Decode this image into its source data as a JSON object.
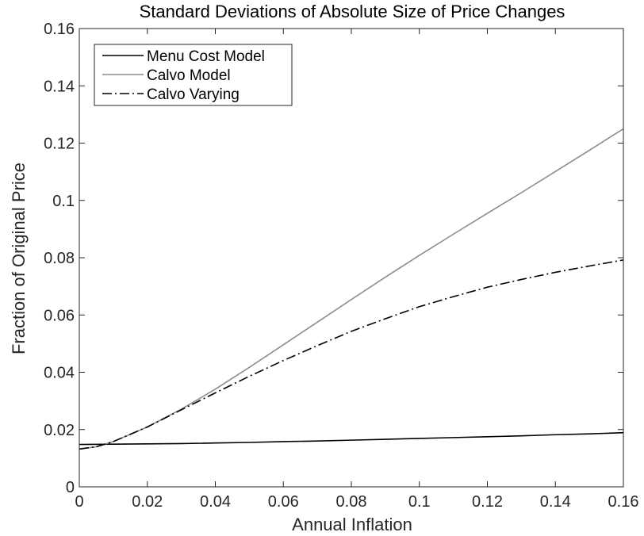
{
  "chart_data": {
    "type": "line",
    "title": "Standard Deviations of Absolute Size of Price Changes",
    "xlabel": "Annual Inflation",
    "ylabel": "Fraction of Original Price",
    "xlim": [
      0,
      0.16
    ],
    "ylim": [
      0,
      0.16
    ],
    "xticks": [
      0,
      0.02,
      0.04,
      0.06,
      0.08,
      0.1,
      0.12,
      0.14,
      0.16
    ],
    "xtick_labels": [
      "0",
      "0.02",
      "0.04",
      "0.06",
      "0.08",
      "0.1",
      "0.12",
      "0.14",
      "0.16"
    ],
    "yticks": [
      0,
      0.02,
      0.04,
      0.06,
      0.08,
      0.1,
      0.12,
      0.14,
      0.16
    ],
    "ytick_labels": [
      "0",
      "0.02",
      "0.04",
      "0.06",
      "0.08",
      "0.1",
      "0.12",
      "0.14",
      "0.16"
    ],
    "grid": false,
    "legend_position": "top-left",
    "series": [
      {
        "name": "Menu Cost Model",
        "color": "#000000",
        "dash": "solid",
        "x": [
          0,
          0.01,
          0.02,
          0.03,
          0.04,
          0.05,
          0.06,
          0.07,
          0.08,
          0.09,
          0.1,
          0.11,
          0.12,
          0.13,
          0.14,
          0.15,
          0.16
        ],
        "y": [
          0.0148,
          0.0149,
          0.015,
          0.0151,
          0.0153,
          0.0155,
          0.0158,
          0.016,
          0.0163,
          0.0166,
          0.0169,
          0.0172,
          0.0175,
          0.0178,
          0.0182,
          0.0185,
          0.0189
        ]
      },
      {
        "name": "Calvo Model",
        "color": "#8c8c8c",
        "dash": "solid",
        "x": [
          0,
          0.005,
          0.01,
          0.02,
          0.03,
          0.04,
          0.05,
          0.06,
          0.07,
          0.08,
          0.09,
          0.1,
          0.11,
          0.12,
          0.13,
          0.14,
          0.15,
          0.16
        ],
        "y": [
          0.0132,
          0.014,
          0.0158,
          0.0209,
          0.0271,
          0.0341,
          0.0417,
          0.0496,
          0.0575,
          0.0654,
          0.0732,
          0.0808,
          0.0882,
          0.0955,
          0.1027,
          0.1101,
          0.1175,
          0.125
        ]
      },
      {
        "name": "Calvo Varying",
        "color": "#000000",
        "dash": "dashdot",
        "x": [
          0,
          0.005,
          0.01,
          0.02,
          0.03,
          0.04,
          0.05,
          0.06,
          0.07,
          0.08,
          0.09,
          0.1,
          0.11,
          0.12,
          0.13,
          0.14,
          0.15,
          0.16
        ],
        "y": [
          0.0132,
          0.014,
          0.0158,
          0.0209,
          0.0269,
          0.0328,
          0.0386,
          0.0441,
          0.0493,
          0.0543,
          0.0587,
          0.0629,
          0.0664,
          0.0697,
          0.0724,
          0.0749,
          0.0771,
          0.0792
        ]
      }
    ]
  }
}
